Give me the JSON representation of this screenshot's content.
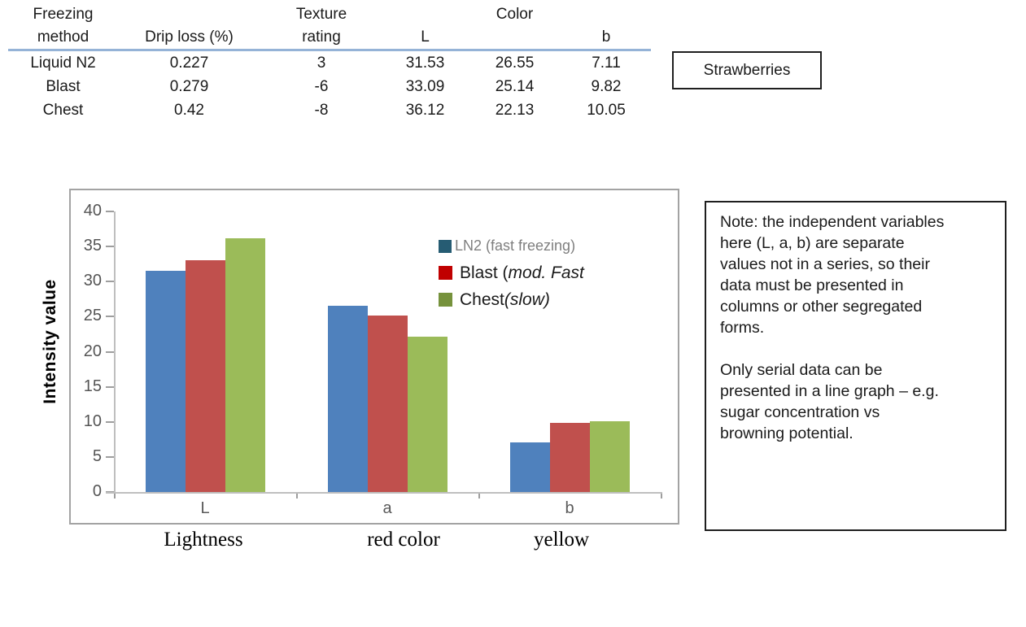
{
  "table": {
    "header_row1": [
      "Freezing",
      "",
      "Texture",
      "",
      "Color",
      ""
    ],
    "header_row2": [
      "method",
      "Drip loss (%)",
      "rating",
      "L",
      "",
      "b"
    ],
    "rows": [
      [
        "Liquid N2",
        "0.227",
        "3",
        "31.53",
        "26.55",
        "7.11"
      ],
      [
        "Blast",
        "0.279",
        "-6",
        "33.09",
        "25.14",
        "9.82"
      ],
      [
        "Chest",
        "0.42",
        "-8",
        "36.12",
        "22.13",
        "10.05"
      ]
    ],
    "rule_color": "#95B3D7"
  },
  "strawberries_label": "Strawberries",
  "chart_data": {
    "type": "bar",
    "title": "",
    "categories": [
      "L",
      "a",
      "b"
    ],
    "category_sublabels": [
      "Lightness",
      "red color",
      "yellow"
    ],
    "series": [
      {
        "name": "LN2 (fast freezing)",
        "color": "#4F81BD",
        "values": [
          31.53,
          26.55,
          7.11
        ]
      },
      {
        "name": "Blast (mod. Fast",
        "color": "#C0504D",
        "values": [
          33.09,
          25.14,
          9.82
        ]
      },
      {
        "name": "Chest (slow)",
        "color": "#9BBB59",
        "values": [
          36.12,
          22.13,
          10.05
        ]
      }
    ],
    "ylabel": "Intensity value",
    "xlabel": "",
    "ylim": [
      0,
      40
    ],
    "ytick_step": 5,
    "grid": false,
    "legend_position": "inside-right"
  },
  "legend": {
    "items": [
      {
        "swatch_color": "#265C73",
        "text": "LN2 (fast freezing)",
        "italic_part": "",
        "text_color": "#7F7F7F"
      },
      {
        "swatch_color": "#C00000",
        "text": "Blast (",
        "italic_part": "mod. Fast",
        "text_color": "#1a1a1a"
      },
      {
        "swatch_color": "#76923C",
        "text": "Chest ",
        "italic_part": "(slow)",
        "text_color": "#1a1a1a"
      }
    ]
  },
  "note": {
    "paragraph1": "Note: the independent variables\nhere (L, a, b) are separate\nvalues not in a series, so their\ndata must be presented in\ncolumns or other segregated\nforms.",
    "paragraph2": "Only serial data can be\npresented in a line graph – e.g.\nsugar concentration vs\nbrowning potential."
  }
}
